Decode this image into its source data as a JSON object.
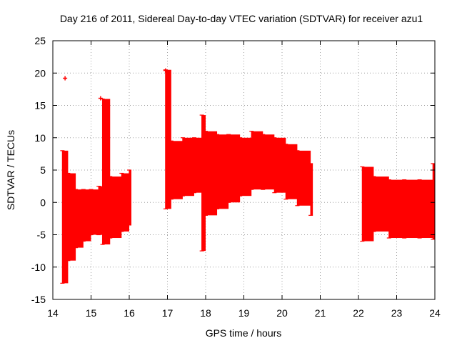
{
  "chart_data": {
    "type": "errorbar",
    "title": "Day 216 of 2011, Sidereal Day-to-day VTEC variation (SDTVAR) for receiver azu1",
    "xlabel": "GPS time / hours",
    "ylabel": "SDTVAR / TECUs",
    "xlim": [
      14,
      24
    ],
    "ylim": [
      -15,
      25
    ],
    "xticks": [
      "14",
      "15",
      "16",
      "17",
      "18",
      "19",
      "20",
      "21",
      "22",
      "23",
      "24"
    ],
    "yticks": [
      "-15",
      "-10",
      "-5",
      "0",
      "5",
      "10",
      "15",
      "20",
      "25"
    ],
    "grid": true,
    "color": "#ff0000",
    "series": [
      {
        "name": "SDTVAR",
        "x": [
          14.25,
          14.4,
          14.6,
          14.8,
          15.0,
          15.2,
          15.3,
          15.5,
          15.8,
          16.0,
          16.95,
          17.1,
          17.4,
          17.7,
          17.9,
          18.0,
          18.3,
          18.6,
          18.9,
          19.2,
          19.5,
          19.8,
          20.1,
          20.4,
          20.75,
          22.1,
          22.4,
          22.8,
          23.2,
          23.6,
          23.95
        ],
        "lower": [
          -12.5,
          -9,
          -7,
          -6,
          -5,
          -5,
          -6.5,
          -5.5,
          -4.5,
          -3.5,
          -1,
          0.5,
          1,
          1.5,
          -7.5,
          -2,
          -1,
          0,
          1,
          2,
          2,
          1.5,
          0.5,
          -0.5,
          -2,
          -6,
          -4.5,
          -5.5,
          -5.5,
          -5.5,
          -5.7
        ],
        "upper": [
          8,
          4.5,
          2,
          2,
          2,
          2.5,
          16,
          4,
          4.5,
          5,
          20.5,
          9.5,
          10,
          10,
          13.5,
          11,
          10.5,
          10.5,
          10,
          11,
          10.5,
          10,
          9,
          8,
          6,
          5.5,
          4,
          3.5,
          3.5,
          3.5,
          6
        ]
      }
    ],
    "outliers": {
      "x": [
        14.32,
        15.25,
        16.95
      ],
      "y": [
        19.2,
        16.1,
        20.4
      ]
    }
  }
}
